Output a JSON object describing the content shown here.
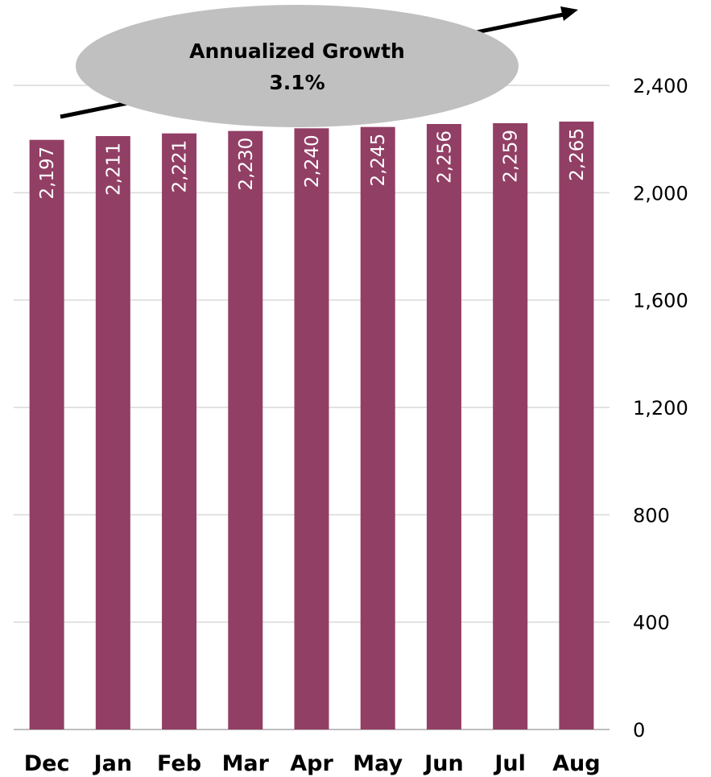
{
  "chart_data": {
    "type": "bar",
    "categories": [
      "Dec",
      "Jan",
      "Feb",
      "Mar",
      "Apr",
      "May",
      "Jun",
      "Jul",
      "Aug"
    ],
    "values": [
      2197,
      2211,
      2221,
      2230,
      2240,
      2245,
      2256,
      2259,
      2265
    ],
    "data_labels": [
      "2,197",
      "2,211",
      "2,221",
      "2,230",
      "2,240",
      "2,245",
      "2,256",
      "2,259",
      "2,265"
    ],
    "title": "",
    "xlabel": "",
    "ylabel": "",
    "ylim": [
      0,
      2400
    ],
    "yticks": [
      0,
      400,
      800,
      1200,
      1600,
      2000,
      2400
    ],
    "ytick_labels": [
      "0",
      "400",
      "800",
      "1,200",
      "1,600",
      "2,000",
      "2,400"
    ],
    "y_axis_side": "right",
    "grid": true,
    "bar_color": "#923f65",
    "annotation": {
      "line1": "Annualized Growth",
      "line2": "3.1%",
      "shape": "ellipse",
      "fill": "#c0c0c0",
      "has_trend_arrow": true
    }
  }
}
